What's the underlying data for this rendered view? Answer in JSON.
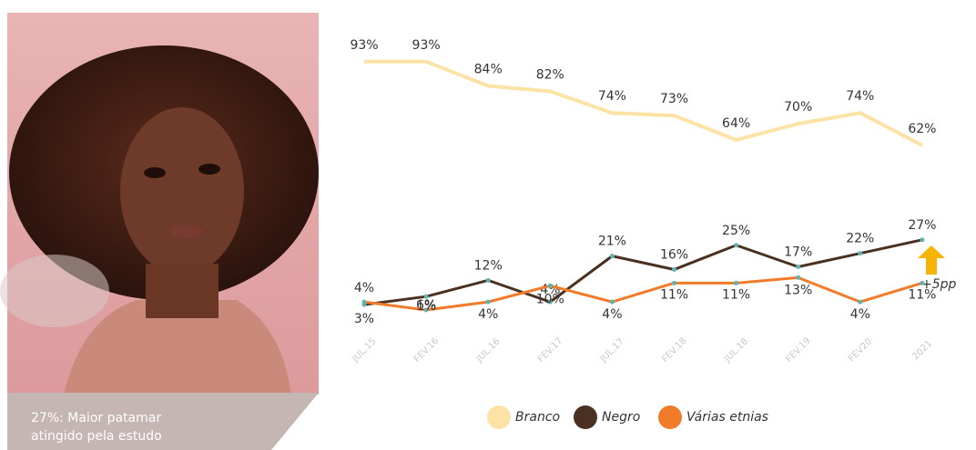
{
  "caption": [
    "27%: Maior patamar",
    "atingido pela estudo"
  ],
  "chart_data": {
    "type": "line",
    "categories": [
      "JUL.15",
      "FEV.16",
      "JUL.16",
      "FEV.17",
      "JUL.17",
      "FEV.18",
      "JUL.18",
      "FEV.19",
      "FEV20",
      "2021"
    ],
    "series": [
      {
        "name": "Branco",
        "color": "#fde2a6",
        "values": [
          93,
          93,
          84,
          82,
          74,
          73,
          64,
          70,
          74,
          62
        ],
        "value_labels": [
          "93%",
          "93%",
          "84%",
          "82%",
          "74%",
          "73%",
          "64%",
          "70%",
          "74%",
          "62%"
        ]
      },
      {
        "name": "Negro",
        "color": "#4a3020",
        "values": [
          3,
          6,
          12,
          4,
          21,
          16,
          25,
          17,
          22,
          27
        ],
        "value_labels": [
          "3%",
          "6%",
          "12%",
          "4%",
          "21%",
          "16%",
          "25%",
          "17%",
          "22%",
          "27%"
        ]
      },
      {
        "name": "Várias etnias",
        "color": "#f27b2a",
        "values": [
          4,
          1,
          4,
          10,
          4,
          11,
          11,
          13,
          4,
          11
        ],
        "value_labels": [
          "4%",
          "1%",
          "4%",
          "10%",
          "4%",
          "11%",
          "11%",
          "13%",
          "4%",
          "11%"
        ]
      }
    ],
    "annotation": "+5pp"
  }
}
